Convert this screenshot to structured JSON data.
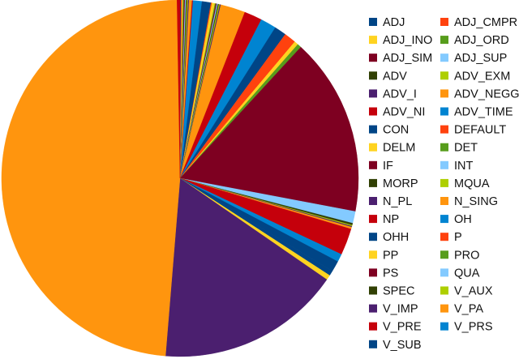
{
  "chart_data": {
    "type": "pie",
    "title": "",
    "legend_position": "right",
    "start_angle_deg": 0,
    "direction": "clockwise",
    "slices": [
      {
        "label": "ADJ",
        "value": 0.1,
        "color": "#004586"
      },
      {
        "label": "ADJ_CMPR",
        "value": 0.1,
        "color": "#ff420e"
      },
      {
        "label": "ADJ_INO",
        "value": 0.1,
        "color": "#ffd320"
      },
      {
        "label": "ADJ_ORD",
        "value": 0.1,
        "color": "#579d1c"
      },
      {
        "label": "ADJ_SIM",
        "value": 0.1,
        "color": "#7e0021"
      },
      {
        "label": "ADJ_SUP",
        "value": 0.1,
        "color": "#83caff"
      },
      {
        "label": "ADV",
        "value": 0.1,
        "color": "#314004"
      },
      {
        "label": "ADV_EXM",
        "value": 0.1,
        "color": "#aecf00"
      },
      {
        "label": "ADV_I",
        "value": 0.1,
        "color": "#4b1f6f"
      },
      {
        "label": "ADV_NEGG",
        "value": 0.3,
        "color": "#ff950e"
      },
      {
        "label": "ADV_NI",
        "value": 0.1,
        "color": "#c5000b"
      },
      {
        "label": "ADV_TIME",
        "value": 0.9,
        "color": "#0084d1"
      },
      {
        "label": "CON",
        "value": 0.9,
        "color": "#004586"
      },
      {
        "label": "DEFAULT",
        "value": 0.1,
        "color": "#ff420e"
      },
      {
        "label": "DELM",
        "value": 0.3,
        "color": "#ffd320"
      },
      {
        "label": "DET",
        "value": 0.1,
        "color": "#579d1c"
      },
      {
        "label": "IF",
        "value": 0.1,
        "color": "#7e0021"
      },
      {
        "label": "INT",
        "value": 0.1,
        "color": "#83caff"
      },
      {
        "label": "MORP",
        "value": 0.1,
        "color": "#314004"
      },
      {
        "label": "MQUA",
        "value": 0.1,
        "color": "#aecf00"
      },
      {
        "label": "N_PL",
        "value": 0.1,
        "color": "#4b1f6f"
      },
      {
        "label": "N_SING",
        "value": 2.5,
        "color": "#ff950e"
      },
      {
        "label": "NP",
        "value": 1.8,
        "color": "#c5000b"
      },
      {
        "label": "OH",
        "value": 1.6,
        "color": "#0084d1"
      },
      {
        "label": "OHH",
        "value": 1.2,
        "color": "#004586"
      },
      {
        "label": "P",
        "value": 1.2,
        "color": "#ff420e"
      },
      {
        "label": "PP",
        "value": 0.4,
        "color": "#ffd320"
      },
      {
        "label": "PRO",
        "value": 0.4,
        "color": "#579d1c"
      },
      {
        "label": "PS",
        "value": 18.0,
        "color": "#7e0021"
      },
      {
        "label": "QUA",
        "value": 1.2,
        "color": "#83caff"
      },
      {
        "label": "SPEC",
        "value": 0.2,
        "color": "#314004"
      },
      {
        "label": "V_AUX",
        "value": 0.1,
        "color": "#aecf00"
      },
      {
        "label": "V_IMP",
        "value": 0.1,
        "color": "#4b1f6f"
      },
      {
        "label": "V_PA",
        "value": 0.2,
        "color": "#ff950e"
      },
      {
        "label": "V_PRE",
        "value": 2.7,
        "color": "#c5000b"
      },
      {
        "label": "V_PRS",
        "value": 0.8,
        "color": "#0084d1"
      },
      {
        "label": "V_SUB",
        "value": 1.1,
        "color": "#004586"
      },
      {
        "label": "CON",
        "value": 0.5,
        "color": "#004586"
      },
      {
        "label": "DELM",
        "value": 0.5,
        "color": "#ffd320"
      },
      {
        "label": "N_PL",
        "value": 18.6,
        "color": "#4b1f6f"
      },
      {
        "label": "N_SING",
        "value": 54.0,
        "color": "#ff950e"
      },
      {
        "label": "NP",
        "value": 0.3,
        "color": "#c5000b"
      }
    ],
    "legend": [
      "ADJ",
      "ADJ_CMPR",
      "ADJ_INO",
      "ADJ_ORD",
      "ADJ_SIM",
      "ADJ_SUP",
      "ADV",
      "ADV_EXM",
      "ADV_I",
      "ADV_NEGG",
      "ADV_NI",
      "ADV_TIME",
      "CON",
      "DEFAULT",
      "DELM",
      "DET",
      "IF",
      "INT",
      "MORP",
      "MQUA",
      "N_PL",
      "N_SING",
      "NP",
      "OH",
      "OHH",
      "P",
      "PP",
      "PRO",
      "PS",
      "QUA",
      "SPEC",
      "V_AUX",
      "V_IMP",
      "V_PA",
      "V_PRE",
      "V_PRS",
      "V_SUB"
    ],
    "legend_colors": [
      "#004586",
      "#ff420e",
      "#ffd320",
      "#579d1c",
      "#7e0021",
      "#83caff",
      "#314004",
      "#aecf00",
      "#4b1f6f",
      "#ff950e",
      "#c5000b",
      "#0084d1",
      "#004586",
      "#ff420e",
      "#ffd320",
      "#579d1c",
      "#7e0021",
      "#83caff",
      "#314004",
      "#aecf00",
      "#4b1f6f",
      "#ff950e",
      "#c5000b",
      "#0084d1",
      "#004586",
      "#ff420e",
      "#ffd320",
      "#579d1c",
      "#7e0021",
      "#83caff",
      "#314004",
      "#aecf00",
      "#4b1f6f",
      "#ff950e",
      "#c5000b",
      "#0084d1",
      "#004586"
    ]
  }
}
